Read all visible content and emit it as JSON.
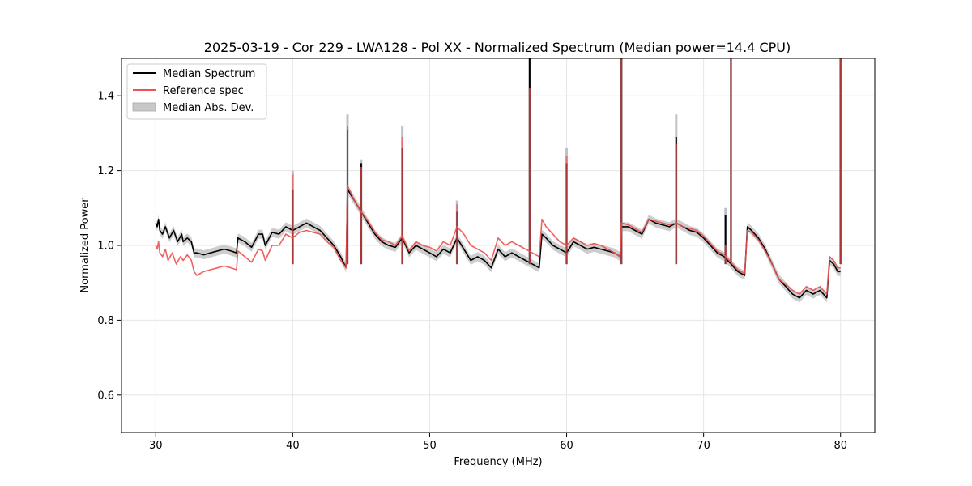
{
  "chart_data": {
    "type": "line",
    "title": "2025-03-19 - Cor 229 - LWA128 - Pol XX - Normalized Spectrum (Median power=14.4 CPU)",
    "xlabel": "Frequency (MHz)",
    "ylabel": "Normalized Power",
    "xlim": [
      27.5,
      82.5
    ],
    "ylim": [
      0.5,
      1.5
    ],
    "xticks": [
      30,
      40,
      50,
      60,
      70,
      80
    ],
    "xtick_labels": [
      "30",
      "40",
      "50",
      "60",
      "70",
      "80"
    ],
    "yticks": [
      0.6,
      0.8,
      1.0,
      1.2,
      1.4
    ],
    "ytick_labels": [
      "0.6",
      "0.8",
      "1.0",
      "1.2",
      "1.4"
    ],
    "grid": true,
    "legend_position": "top-left",
    "legend": [
      {
        "label": "Median Spectrum",
        "kind": "line",
        "color": "#000000"
      },
      {
        "label": "Reference spec",
        "kind": "line",
        "color": "#f05050"
      },
      {
        "label": "Median Abs. Dev.",
        "kind": "patch",
        "color": "#c8c8c8"
      }
    ],
    "series": [
      {
        "name": "Median Spectrum",
        "color": "#000000",
        "x": [
          30.0,
          30.1,
          30.2,
          30.3,
          30.5,
          30.7,
          31.0,
          31.3,
          31.6,
          31.9,
          32.0,
          32.3,
          32.6,
          32.8,
          33.0,
          33.5,
          34.0,
          34.5,
          35.0,
          35.5,
          35.9,
          36.0,
          36.5,
          37.0,
          37.5,
          37.8,
          38.0,
          38.5,
          39.0,
          39.5,
          40.0,
          40.5,
          41.0,
          41.5,
          42.0,
          42.5,
          43.0,
          43.5,
          43.9,
          44.0,
          44.5,
          45.0,
          45.5,
          46.0,
          46.5,
          47.0,
          47.5,
          48.0,
          48.5,
          49.0,
          49.5,
          50.0,
          50.5,
          51.0,
          51.5,
          52.0,
          52.5,
          53.0,
          53.5,
          54.0,
          54.5,
          55.0,
          55.5,
          56.0,
          56.5,
          57.0,
          57.5,
          58.0,
          58.2,
          58.5,
          59.0,
          59.5,
          60.0,
          60.5,
          61.0,
          61.5,
          62.0,
          62.5,
          63.0,
          63.5,
          63.9,
          64.0,
          64.5,
          65.0,
          65.5,
          66.0,
          66.5,
          67.0,
          67.5,
          68.0,
          68.5,
          69.0,
          69.5,
          70.0,
          70.5,
          71.0,
          71.5,
          72.0,
          72.5,
          73.0,
          73.2,
          73.5,
          74.0,
          74.5,
          75.0,
          75.5,
          76.0,
          76.5,
          77.0,
          77.5,
          78.0,
          78.5,
          79.0,
          79.2,
          79.5,
          79.8,
          80.0
        ],
        "values": [
          1.06,
          1.05,
          1.07,
          1.04,
          1.03,
          1.05,
          1.02,
          1.04,
          1.01,
          1.03,
          1.01,
          1.02,
          1.01,
          0.98,
          0.98,
          0.975,
          0.98,
          0.985,
          0.99,
          0.985,
          0.98,
          1.02,
          1.01,
          0.995,
          1.03,
          1.03,
          1.0,
          1.035,
          1.03,
          1.05,
          1.04,
          1.05,
          1.06,
          1.05,
          1.04,
          1.02,
          1.0,
          0.97,
          0.94,
          1.15,
          1.12,
          1.09,
          1.06,
          1.03,
          1.01,
          1.0,
          0.995,
          1.02,
          0.98,
          1.0,
          0.99,
          0.98,
          0.97,
          0.99,
          0.98,
          1.02,
          0.99,
          0.96,
          0.97,
          0.96,
          0.94,
          0.99,
          0.97,
          0.98,
          0.97,
          0.96,
          0.95,
          0.94,
          1.03,
          1.02,
          1.0,
          0.99,
          0.98,
          1.01,
          1.0,
          0.99,
          0.995,
          0.99,
          0.985,
          0.98,
          0.97,
          1.05,
          1.05,
          1.04,
          1.03,
          1.07,
          1.06,
          1.055,
          1.05,
          1.06,
          1.05,
          1.04,
          1.035,
          1.02,
          1.0,
          0.98,
          0.97,
          0.95,
          0.93,
          0.92,
          1.05,
          1.04,
          1.02,
          0.99,
          0.95,
          0.91,
          0.89,
          0.87,
          0.86,
          0.88,
          0.87,
          0.88,
          0.86,
          0.96,
          0.95,
          0.93,
          0.93
        ]
      },
      {
        "name": "Reference spec",
        "color": "#f05050",
        "x": [
          30.0,
          30.1,
          30.2,
          30.3,
          30.5,
          30.7,
          30.9,
          31.2,
          31.5,
          31.8,
          32.0,
          32.3,
          32.6,
          32.8,
          33.0,
          33.5,
          34.0,
          34.5,
          35.0,
          35.5,
          35.9,
          36.0,
          36.5,
          37.0,
          37.5,
          37.8,
          38.0,
          38.5,
          39.0,
          39.5,
          40.0,
          40.5,
          41.0,
          41.5,
          42.0,
          42.5,
          43.0,
          43.5,
          43.9,
          44.0,
          44.5,
          45.0,
          45.5,
          46.0,
          46.5,
          47.0,
          47.5,
          48.0,
          48.5,
          49.0,
          49.5,
          50.0,
          50.5,
          51.0,
          51.5,
          52.0,
          52.5,
          53.0,
          53.5,
          54.0,
          54.5,
          55.0,
          55.5,
          56.0,
          56.5,
          57.0,
          57.5,
          58.0,
          58.2,
          58.5,
          59.0,
          59.5,
          60.0,
          60.5,
          61.0,
          61.5,
          62.0,
          62.5,
          63.0,
          63.5,
          63.9,
          64.0,
          64.5,
          65.0,
          65.5,
          66.0,
          66.5,
          67.0,
          67.5,
          68.0,
          68.5,
          69.0,
          69.5,
          70.0,
          70.5,
          71.0,
          71.5,
          72.0,
          72.5,
          73.0,
          73.2,
          73.5,
          74.0,
          74.5,
          75.0,
          75.5,
          76.0,
          76.5,
          77.0,
          77.5,
          78.0,
          78.5,
          79.0,
          79.2,
          79.5,
          79.8,
          80.0
        ],
        "values": [
          1.0,
          0.99,
          1.01,
          0.98,
          0.97,
          0.99,
          0.96,
          0.98,
          0.95,
          0.97,
          0.96,
          0.975,
          0.96,
          0.93,
          0.92,
          0.93,
          0.935,
          0.94,
          0.945,
          0.94,
          0.935,
          0.985,
          0.97,
          0.955,
          0.99,
          0.985,
          0.96,
          1.0,
          1.0,
          1.03,
          1.02,
          1.035,
          1.04,
          1.035,
          1.03,
          1.01,
          0.995,
          0.96,
          0.94,
          1.16,
          1.12,
          1.09,
          1.065,
          1.035,
          1.015,
          1.01,
          1.0,
          1.025,
          0.985,
          1.01,
          1.0,
          0.995,
          0.985,
          1.01,
          1.0,
          1.05,
          1.03,
          1.0,
          0.99,
          0.98,
          0.96,
          1.02,
          1.0,
          1.01,
          1.0,
          0.99,
          0.98,
          0.97,
          1.07,
          1.05,
          1.03,
          1.01,
          1.0,
          1.02,
          1.01,
          1.0,
          1.005,
          1.0,
          0.99,
          0.98,
          0.97,
          1.06,
          1.055,
          1.045,
          1.035,
          1.07,
          1.065,
          1.06,
          1.055,
          1.06,
          1.05,
          1.045,
          1.04,
          1.025,
          1.005,
          0.985,
          0.975,
          0.955,
          0.935,
          0.925,
          1.04,
          1.035,
          1.015,
          0.985,
          0.95,
          0.91,
          0.895,
          0.88,
          0.87,
          0.89,
          0.88,
          0.89,
          0.87,
          0.97,
          0.96,
          0.94,
          0.94
        ]
      }
    ],
    "mad_band": {
      "name": "Median Abs. Dev.",
      "color": "#c8c8c8",
      "half_width": 0.012
    },
    "spikes": [
      {
        "x": 40.0,
        "median_top": 1.15,
        "reference_top": 1.19,
        "mad_top": 1.2
      },
      {
        "x": 44.0,
        "median_top": 1.31,
        "reference_top": 1.32,
        "mad_top": 1.35
      },
      {
        "x": 45.0,
        "median_top": 1.22,
        "reference_top": 1.21,
        "mad_top": 1.23
      },
      {
        "x": 48.0,
        "median_top": 1.26,
        "reference_top": 1.29,
        "mad_top": 1.32
      },
      {
        "x": 52.0,
        "median_top": 1.09,
        "reference_top": 1.11,
        "mad_top": 1.12
      },
      {
        "x": 57.3,
        "median_top": 1.5,
        "reference_top": 1.42,
        "mad_top": 1.5
      },
      {
        "x": 60.0,
        "median_top": 1.22,
        "reference_top": 1.24,
        "mad_top": 1.26
      },
      {
        "x": 64.0,
        "median_top": 1.5,
        "reference_top": 1.5,
        "mad_top": 1.5
      },
      {
        "x": 68.0,
        "median_top": 1.29,
        "reference_top": 1.27,
        "mad_top": 1.35
      },
      {
        "x": 71.6,
        "median_top": 1.08,
        "reference_top": 1.0,
        "mad_top": 1.1
      },
      {
        "x": 72.0,
        "median_top": 1.5,
        "reference_top": 1.5,
        "mad_top": 1.5
      },
      {
        "x": 80.0,
        "median_top": 1.5,
        "reference_top": 1.5,
        "mad_top": 1.5
      }
    ]
  }
}
